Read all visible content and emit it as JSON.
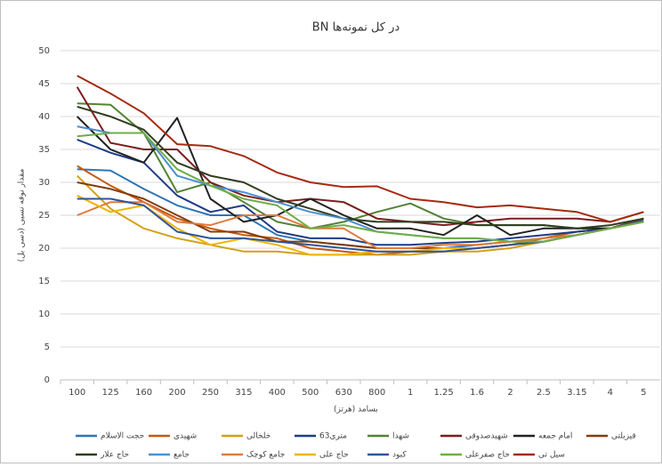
{
  "chart_data": {
    "type": "line",
    "title": "BN در کل نمونه‌ها",
    "y_label": "مقدار نوفه نسبی (دسی بل)",
    "x_label": "بسامد (هرتز)",
    "categories": [
      "100",
      "125",
      "160",
      "200",
      "250",
      "315",
      "400",
      "500",
      "630",
      "800",
      "1",
      "1.25",
      "1.6",
      "2",
      "2.5",
      "3.15",
      "4",
      "5"
    ],
    "ylim": [
      0,
      50
    ],
    "yticks": [
      0,
      5,
      10,
      15,
      20,
      25,
      30,
      35,
      40,
      45,
      50
    ],
    "grid": true,
    "series": [
      {
        "name": "حجت الاسلام",
        "color": "#2e75b6",
        "values": [
          32,
          31.8,
          29,
          26.5,
          25,
          25,
          22,
          21,
          20.5,
          20,
          20,
          20,
          20.5,
          21,
          21.5,
          22.5,
          23,
          24
        ]
      },
      {
        "name": "شهیدی",
        "color": "#c55a11",
        "values": [
          32.5,
          29.5,
          27,
          24.5,
          23,
          22,
          21.5,
          20,
          19.5,
          19,
          19.5,
          19.5,
          20,
          20.5,
          21.5,
          22.5,
          23,
          24.5
        ]
      },
      {
        "name": "خلخالی",
        "color": "#d4a017",
        "values": [
          31,
          26,
          23,
          21.5,
          20.5,
          19.5,
          19.5,
          19,
          19,
          19,
          19,
          19.5,
          19.5,
          20,
          21,
          22,
          23,
          24
        ]
      },
      {
        "name": "63متری",
        "color": "#1f3c88",
        "values": [
          36.5,
          34.5,
          33,
          28,
          25.5,
          26.5,
          22.5,
          21.5,
          21.5,
          20.5,
          20.5,
          20.8,
          21,
          21.5,
          22,
          22.5,
          23,
          24.5
        ]
      },
      {
        "name": "شهدا",
        "color": "#548235",
        "values": [
          42,
          41.8,
          37.5,
          28.5,
          30,
          27,
          24,
          23,
          24,
          25.5,
          26.8,
          24.5,
          23.5,
          23.5,
          23.5,
          23,
          23,
          24
        ]
      },
      {
        "name": "شهیدصدوقی",
        "color": "#7b1e1e",
        "values": [
          44.5,
          36,
          35,
          35,
          30,
          28,
          27,
          27.5,
          27,
          24.5,
          24,
          23.5,
          24,
          24.5,
          24.5,
          24.5,
          24,
          25.5
        ]
      },
      {
        "name": "امام جمعه",
        "color": "#222222",
        "values": [
          40,
          35,
          33,
          39.8,
          27.5,
          24,
          25,
          27.5,
          25,
          23,
          23,
          22,
          25,
          22,
          23,
          23,
          23,
          24.5
        ]
      },
      {
        "name": "قیزیلتی",
        "color": "#843c0c",
        "values": [
          30,
          29,
          27.5,
          25,
          22.5,
          22.5,
          21,
          21,
          20.5,
          20,
          20,
          20,
          20,
          20.5,
          21,
          22,
          23,
          24.5
        ]
      },
      {
        "name": "حاج علار",
        "color": "#2f3d1f",
        "values": [
          41.5,
          40,
          38,
          33,
          31,
          30,
          27.5,
          26,
          24.5,
          24,
          24,
          24,
          23.5,
          23.5,
          23.5,
          23,
          23.5,
          24.5
        ]
      },
      {
        "name": "جامع",
        "color": "#4a8fd0",
        "values": [
          38.5,
          37.5,
          37.5,
          31,
          29.5,
          28.5,
          27,
          25.5,
          24.5,
          22.5,
          22,
          21.5,
          21.5,
          21,
          21,
          22,
          23,
          24
        ]
      },
      {
        "name": "جامع کوچک",
        "color": "#e07b39",
        "values": [
          25,
          27,
          27,
          24,
          23.5,
          25,
          25,
          23,
          23,
          20,
          20,
          20.5,
          20.5,
          21,
          21.5,
          22,
          23,
          24
        ]
      },
      {
        "name": "حاج علی",
        "color": "#f0b400",
        "values": [
          28,
          25.5,
          26.5,
          23,
          20.5,
          21.5,
          20.5,
          19,
          19,
          19.5,
          19.5,
          20,
          20,
          20.5,
          21,
          22,
          23,
          24
        ]
      },
      {
        "name": "کبود",
        "color": "#2f5597",
        "values": [
          27.5,
          27.5,
          26.5,
          22.5,
          21.5,
          21.5,
          21,
          20.5,
          20,
          19.5,
          19.5,
          19.5,
          20,
          20.5,
          21,
          22,
          23,
          24.2
        ]
      },
      {
        "name": "حاج صفرعلی",
        "color": "#70ad47",
        "values": [
          37,
          37.5,
          37.5,
          32,
          29.5,
          27.5,
          26.5,
          23,
          23.5,
          22.5,
          22,
          21.5,
          21.5,
          21,
          21,
          22,
          23,
          24
        ]
      },
      {
        "name": "سیل تی",
        "color": "#a52a0f",
        "values": [
          46.2,
          43.5,
          40.5,
          35.8,
          35.5,
          34,
          31.5,
          30,
          29.3,
          29.4,
          27.5,
          27,
          26.2,
          26.5,
          26,
          25.5,
          24,
          25.5
        ]
      }
    ]
  }
}
